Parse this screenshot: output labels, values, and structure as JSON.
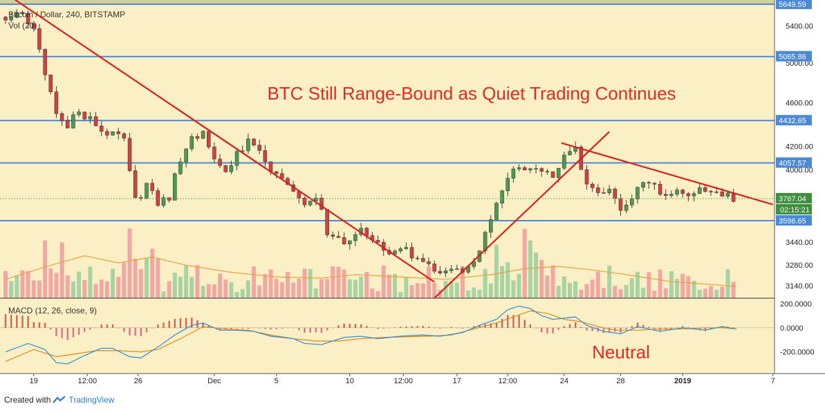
{
  "symbol_title": "Bitcoin / Dollar, 240, BITSTAMP",
  "vol_label": "Vol (20)",
  "macd_label": "MACD (12, 26, close, 9)",
  "headline": "BTC Still Range-Bound as Quiet Trading Continues",
  "macd_annotation": "Neutral",
  "footer": {
    "created_with": "Created with",
    "brand": "TradingView"
  },
  "colors": {
    "background": "#fbefc6",
    "up": "#4a9a52",
    "down": "#d04242",
    "trendline": "#d81e1e",
    "level": "#4a88d8",
    "macd": "#2a8ad8",
    "signal": "#e08a18",
    "volume_ma": "#e8a040"
  },
  "chart_data": [
    {
      "type": "candlestick",
      "title": "Bitcoin / Dollar, 240, BITSTAMP",
      "y_axis_ticks": [
        "5400.00",
        "5000.00",
        "4600.00",
        "4200.00",
        "4000.00",
        "3440.00",
        "3280.00",
        "3140.00"
      ],
      "ylim": [
        3060,
        5700
      ],
      "x_axis_ticks": [
        "19",
        "12:00",
        "26",
        "Dec",
        "5",
        "10",
        "12:00",
        "17",
        "12:00",
        "24",
        "28",
        "2019",
        "7"
      ],
      "horizontal_levels": [
        "5649.59",
        "5065.86",
        "4432.65",
        "4057.57",
        "3596.65"
      ],
      "price_labels": {
        "last_price": "3767.04",
        "countdown": "02:15:21"
      },
      "annotation": "BTC Still Range-Bound as Quiet Trading Continues",
      "close_path": [
        [
          0,
          5500
        ],
        [
          3,
          5510
        ],
        [
          5,
          5350
        ],
        [
          7,
          4900
        ],
        [
          9,
          4500
        ],
        [
          11,
          4380
        ],
        [
          13,
          4520
        ],
        [
          15,
          4450
        ],
        [
          17,
          4350
        ],
        [
          19,
          4300
        ],
        [
          21,
          4250
        ],
        [
          23,
          3750
        ],
        [
          24.5,
          3800
        ],
        [
          25,
          3900
        ],
        [
          27,
          3720
        ],
        [
          29,
          3780
        ],
        [
          31,
          4100
        ],
        [
          33,
          4250
        ],
        [
          35,
          4300
        ],
        [
          37,
          4100
        ],
        [
          39,
          3980
        ],
        [
          41,
          4150
        ],
        [
          43,
          4230
        ],
        [
          45,
          4150
        ],
        [
          47,
          4000
        ],
        [
          49,
          3900
        ],
        [
          51,
          3850
        ],
        [
          53,
          3750
        ],
        [
          55,
          3800
        ],
        [
          57,
          3500
        ],
        [
          59,
          3480
        ],
        [
          61,
          3420
        ],
        [
          63,
          3530
        ],
        [
          65,
          3450
        ],
        [
          67,
          3370
        ],
        [
          69,
          3350
        ],
        [
          71,
          3380
        ],
        [
          73,
          3300
        ],
        [
          75,
          3260
        ],
        [
          77,
          3230
        ],
        [
          79,
          3250
        ],
        [
          81,
          3230
        ],
        [
          83,
          3300
        ],
        [
          85,
          3500
        ],
        [
          87,
          3700
        ],
        [
          89,
          3900
        ],
        [
          91,
          4050
        ],
        [
          93,
          4000
        ],
        [
          95,
          3980
        ],
        [
          97,
          3950
        ],
        [
          99,
          4100
        ],
        [
          101,
          4220
        ],
        [
          102,
          4000
        ],
        [
          103,
          3850
        ],
        [
          105,
          3800
        ],
        [
          107,
          3820
        ],
        [
          108.5,
          3700
        ],
        [
          110,
          3720
        ],
        [
          112,
          3850
        ],
        [
          114,
          3900
        ],
        [
          116,
          3810
        ],
        [
          118,
          3820
        ],
        [
          120,
          3790
        ],
        [
          122,
          3830
        ],
        [
          124,
          3850
        ],
        [
          126,
          3820
        ],
        [
          128,
          3780
        ],
        [
          129.5,
          3767
        ]
      ],
      "volume_ma_path": [
        [
          0,
          0.16
        ],
        [
          8,
          0.28
        ],
        [
          14,
          0.36
        ],
        [
          20,
          0.3
        ],
        [
          26,
          0.35
        ],
        [
          32,
          0.28
        ],
        [
          40,
          0.22
        ],
        [
          48,
          0.18
        ],
        [
          56,
          0.17
        ],
        [
          62,
          0.2
        ],
        [
          70,
          0.18
        ],
        [
          78,
          0.16
        ],
        [
          86,
          0.2
        ],
        [
          92,
          0.25
        ],
        [
          98,
          0.27
        ],
        [
          104,
          0.24
        ],
        [
          110,
          0.2
        ],
        [
          118,
          0.14
        ],
        [
          124,
          0.12
        ],
        [
          129.5,
          0.1
        ]
      ],
      "trendlines": [
        {
          "from": [
            0,
            5780
          ],
          "to": [
            76,
            3165
          ]
        },
        {
          "from": [
            76,
            3060
          ],
          "to": [
            107,
            4330
          ]
        },
        {
          "from": [
            98.5,
            4230
          ],
          "to": [
            136,
            3720
          ]
        }
      ]
    },
    {
      "type": "line",
      "title": "MACD (12, 26, close, 9)",
      "y_axis_ticks": [
        "200.0000",
        "0.0000",
        "-200.0000"
      ],
      "ylim": [
        -380,
        240
      ],
      "annotation": "Neutral",
      "series": [
        {
          "values": [
            [
              0,
              -200
            ],
            [
              4,
              -130
            ],
            [
              7,
              -180
            ],
            [
              9,
              -290
            ],
            [
              11,
              -300
            ],
            [
              14,
              -230
            ],
            [
              17,
              -170
            ],
            [
              19,
              -170
            ],
            [
              22,
              -240
            ],
            [
              24,
              -250
            ],
            [
              27,
              -160
            ],
            [
              30,
              -60
            ],
            [
              33,
              20
            ],
            [
              35,
              40
            ],
            [
              38,
              -20
            ],
            [
              41,
              -20
            ],
            [
              44,
              -30
            ],
            [
              47,
              -70
            ],
            [
              51,
              -90
            ],
            [
              53,
              -130
            ],
            [
              56,
              -140
            ],
            [
              58,
              -110
            ],
            [
              60,
              -80
            ],
            [
              63,
              -70
            ],
            [
              66,
              -90
            ],
            [
              70,
              -70
            ],
            [
              74,
              -60
            ],
            [
              77,
              -70
            ],
            [
              81,
              -40
            ],
            [
              84,
              20
            ],
            [
              87,
              70
            ],
            [
              89,
              150
            ],
            [
              91,
              180
            ],
            [
              93,
              160
            ],
            [
              95,
              100
            ],
            [
              97,
              70
            ],
            [
              99,
              80
            ],
            [
              101,
              90
            ],
            [
              103,
              20
            ],
            [
              106,
              -30
            ],
            [
              109,
              -50
            ],
            [
              112,
              10
            ],
            [
              116,
              -30
            ],
            [
              120,
              0
            ],
            [
              124,
              -20
            ],
            [
              127,
              10
            ],
            [
              129.5,
              -10
            ]
          ]
        },
        {
          "values": [
            [
              0,
              -280
            ],
            [
              5,
              -180
            ],
            [
              9,
              -240
            ],
            [
              12,
              -220
            ],
            [
              16,
              -190
            ],
            [
              20,
              -190
            ],
            [
              24,
              -200
            ],
            [
              27,
              -180
            ],
            [
              31,
              -90
            ],
            [
              35,
              10
            ],
            [
              39,
              -10
            ],
            [
              43,
              -20
            ],
            [
              47,
              -60
            ],
            [
              51,
              -90
            ],
            [
              55,
              -110
            ],
            [
              59,
              -110
            ],
            [
              63,
              -90
            ],
            [
              67,
              -80
            ],
            [
              71,
              -75
            ],
            [
              75,
              -70
            ],
            [
              79,
              -60
            ],
            [
              83,
              -10
            ],
            [
              87,
              40
            ],
            [
              90,
              90
            ],
            [
              93,
              140
            ],
            [
              96,
              120
            ],
            [
              99,
              70
            ],
            [
              102,
              50
            ],
            [
              105,
              10
            ],
            [
              108,
              -20
            ],
            [
              112,
              -20
            ],
            [
              116,
              -10
            ],
            [
              120,
              -10
            ],
            [
              124,
              0
            ],
            [
              127,
              0
            ],
            [
              129.5,
              -10
            ]
          ]
        }
      ]
    }
  ]
}
